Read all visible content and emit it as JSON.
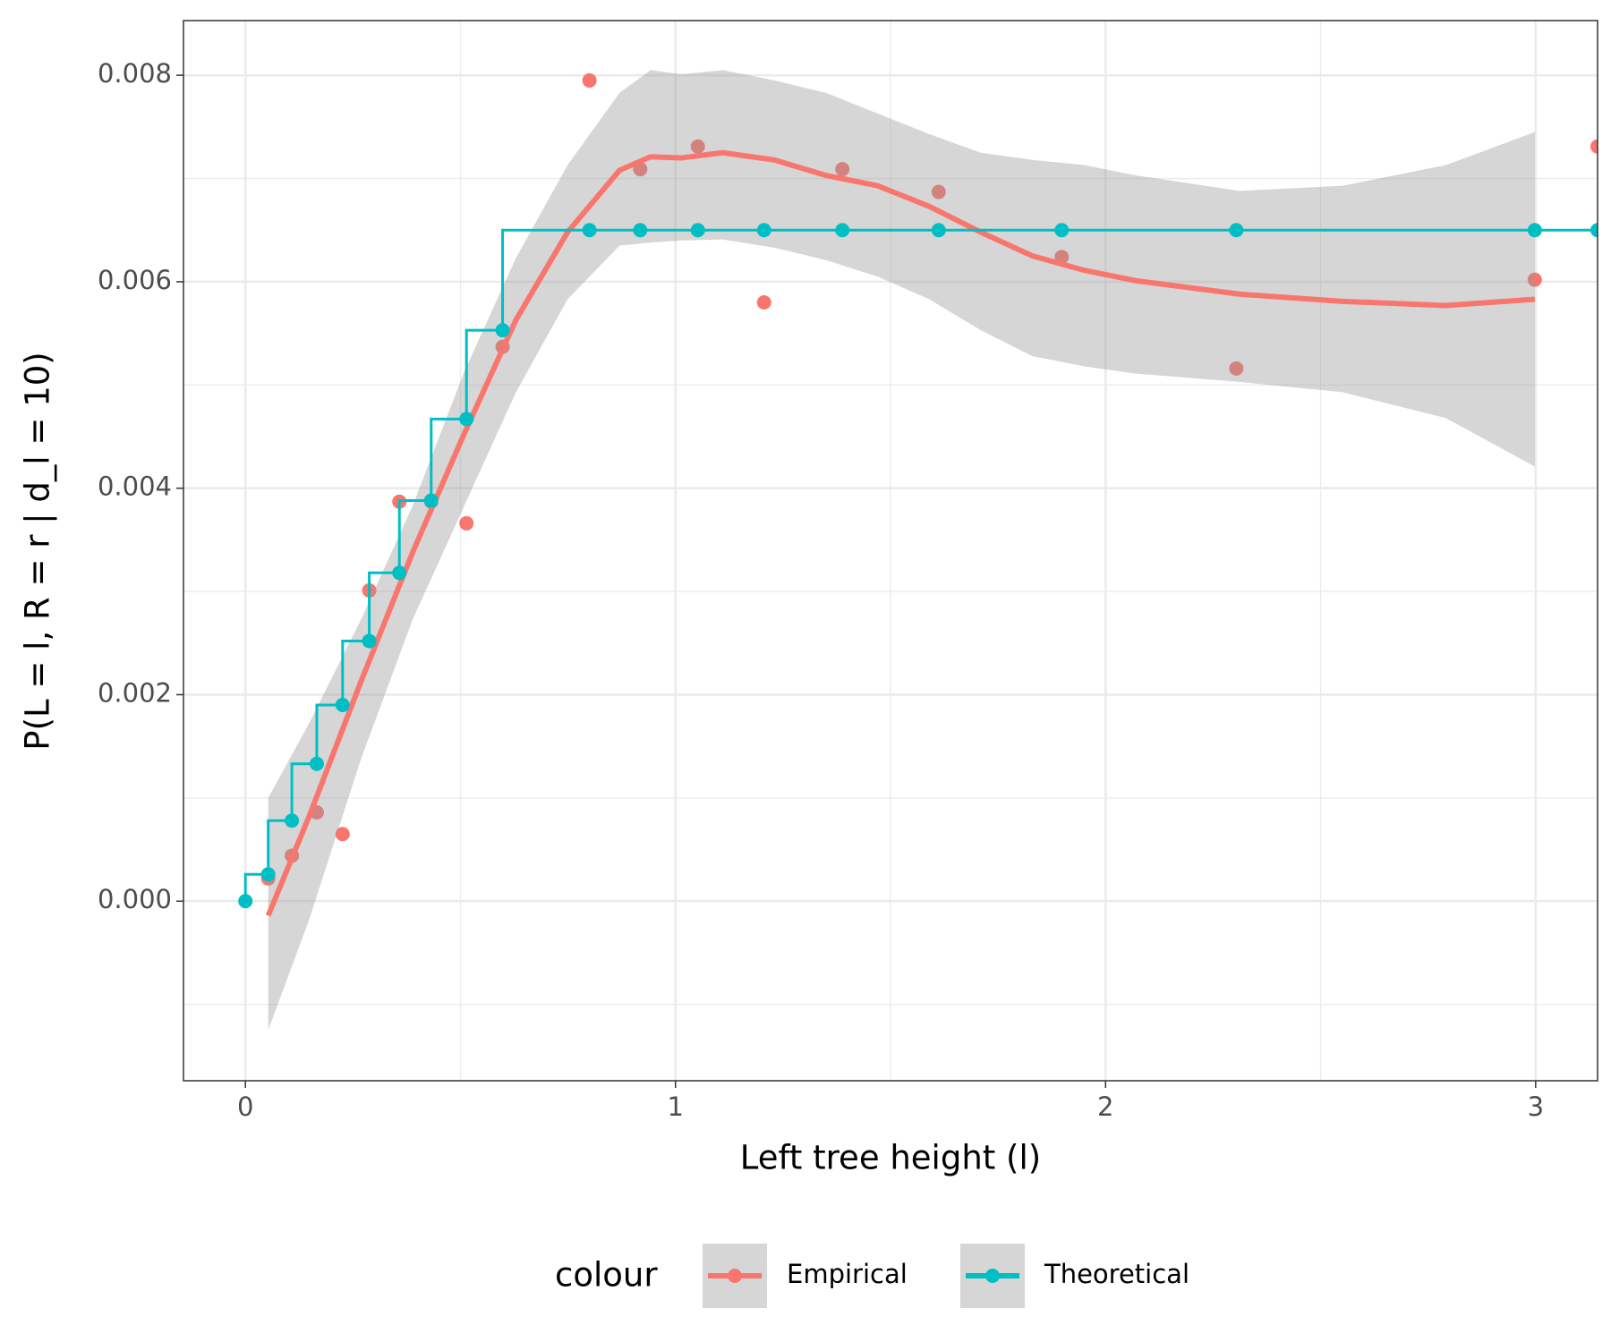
{
  "chart_data": {
    "type": "scatter-step-smooth",
    "xlabel": "Left tree height (l)",
    "ylabel": "P(L = l, R = r | d_l = 10)",
    "legend_title": "colour",
    "legend_position": "bottom",
    "grid": true,
    "x": [
      0,
      0.053,
      0.108,
      0.166,
      0.226,
      0.288,
      0.358,
      0.432,
      0.514,
      0.598,
      0.8,
      0.918,
      1.052,
      1.206,
      1.388,
      1.612,
      1.898,
      2.304,
      2.998,
      3.144
    ],
    "series": [
      {
        "name": "Empirical",
        "color": "#F8766D",
        "values": [
          null,
          0.00022,
          0.00044,
          0.00086,
          0.00065,
          0.00301,
          0.00387,
          0.00387,
          0.00366,
          0.00537,
          0.00795,
          0.00709,
          0.00731,
          0.0058,
          0.00709,
          0.00687,
          0.00624,
          0.00516,
          0.00602,
          0.00731
        ]
      },
      {
        "name": "Theoretical",
        "color": "#00BFC4",
        "values": [
          0,
          0.00026,
          0.00078,
          0.00133,
          0.0019,
          0.00252,
          0.00318,
          0.00388,
          0.00467,
          0.00553,
          0.0065,
          0.0065,
          0.0065,
          0.0065,
          0.0065,
          0.0065,
          0.0065,
          0.0065,
          0.0065,
          0.0065
        ]
      }
    ],
    "smooth": {
      "x": [
        0.053,
        0.149,
        0.269,
        0.389,
        0.509,
        0.629,
        0.749,
        0.87,
        0.942,
        1.014,
        1.11,
        1.23,
        1.35,
        1.47,
        1.59,
        1.71,
        1.83,
        1.951,
        2.071,
        2.311,
        2.551,
        2.791,
        2.998
      ],
      "y": [
        -0.00014,
        0.00083,
        0.00213,
        0.00338,
        0.00453,
        0.00563,
        0.00648,
        0.00708,
        0.00721,
        0.0072,
        0.00725,
        0.00718,
        0.00703,
        0.00693,
        0.00673,
        0.00648,
        0.00625,
        0.00611,
        0.00601,
        0.00588,
        0.00581,
        0.00577,
        0.00583
      ],
      "ymax": [
        0.001,
        0.00173,
        0.00273,
        0.00383,
        0.00513,
        0.00623,
        0.00713,
        0.00783,
        0.00805,
        0.00801,
        0.00805,
        0.00795,
        0.00783,
        0.00763,
        0.00743,
        0.00725,
        0.00718,
        0.00713,
        0.00703,
        0.00688,
        0.00693,
        0.00713,
        0.00745
      ],
      "ymin": [
        -0.00125,
        -0.00017,
        0.00138,
        0.00273,
        0.00383,
        0.00493,
        0.00583,
        0.00635,
        0.00638,
        0.0064,
        0.00641,
        0.00633,
        0.00621,
        0.00605,
        0.00583,
        0.00553,
        0.00528,
        0.00518,
        0.00511,
        0.00503,
        0.00493,
        0.00468,
        0.00421
      ],
      "ribbon_color": "#999999"
    },
    "xlim": [
      -0.144,
      3.144
    ],
    "xticks": [
      0,
      1,
      2,
      3
    ],
    "ylim": [
      -0.00174,
      0.00853
    ],
    "yticks": [
      {
        "value": 0,
        "label": "0.000"
      },
      {
        "value": 0.002,
        "label": "0.002"
      },
      {
        "value": 0.004,
        "label": "0.004"
      },
      {
        "value": 0.006,
        "label": "0.006"
      },
      {
        "value": 0.008,
        "label": "0.008"
      }
    ]
  }
}
